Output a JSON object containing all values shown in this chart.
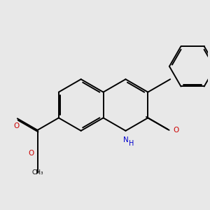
{
  "background_color": "#e8e8e8",
  "bond_color": "#000000",
  "N_color": "#0000cd",
  "O_color": "#cc0000",
  "line_width": 1.4,
  "figsize": [
    3.0,
    3.0
  ],
  "dpi": 100,
  "xlim": [
    0,
    10
  ],
  "ylim": [
    0,
    10
  ]
}
